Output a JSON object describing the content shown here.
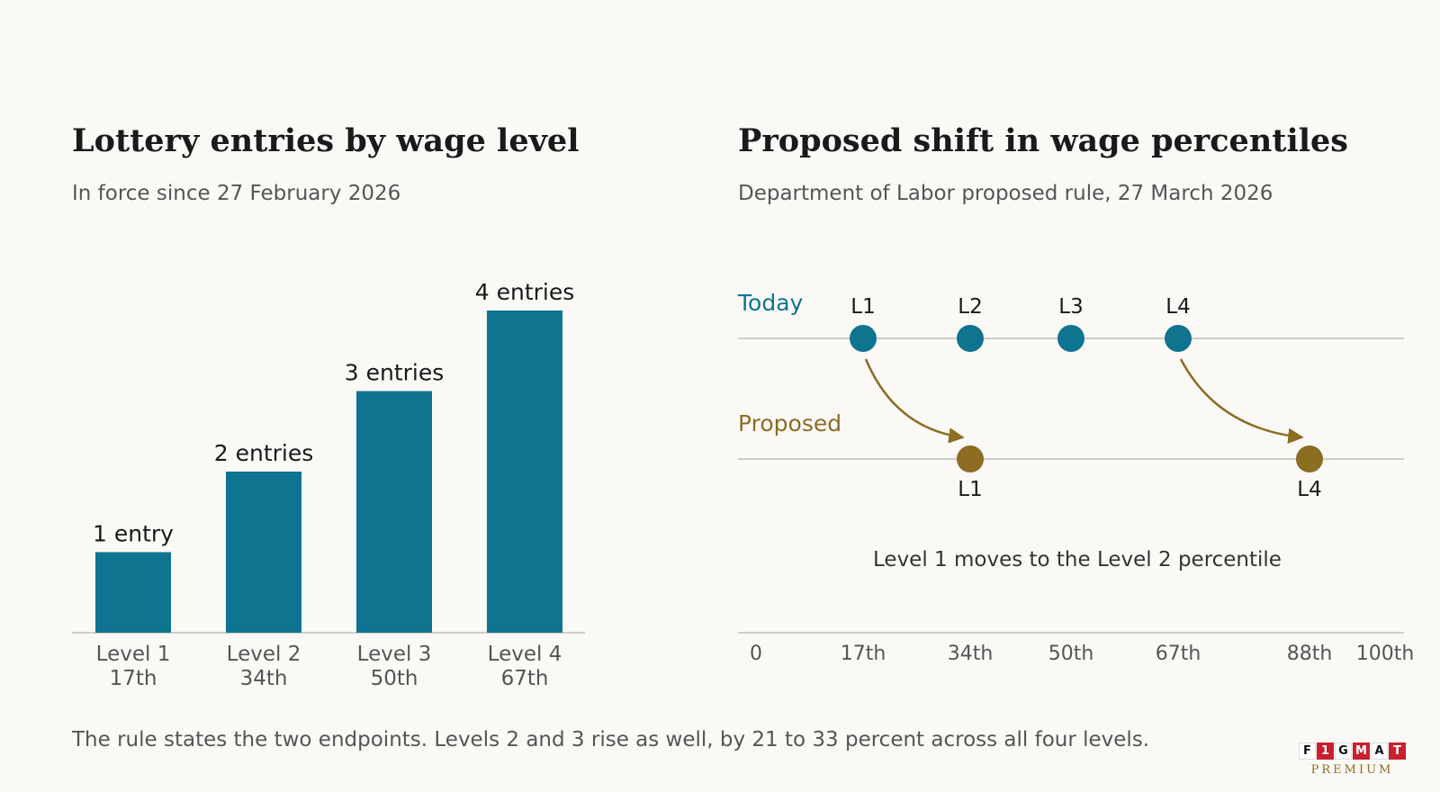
{
  "left": {
    "title": "Lottery entries by wage level",
    "subtitle": "In force since 27 February 2026"
  },
  "right": {
    "title": "Proposed shift in wage percentiles",
    "subtitle": "Department of Labor proposed rule, 27 March 2026",
    "row_today_label": "Today",
    "row_proposed_label": "Proposed",
    "annotation": "Level 1 moves to the Level 2 percentile"
  },
  "footnote": "The rule states the two endpoints. Levels 2 and 3 rise as well, by 21 to 33 percent across all four levels.",
  "logo": {
    "letters": [
      "F",
      "1",
      "G",
      "M",
      "A",
      "T"
    ],
    "tagline": "PREMIUM"
  },
  "colors": {
    "today": "#0e7490",
    "proposed": "#8c6d22",
    "axis": "#cfcdc6",
    "logo_red": "#c8202f"
  },
  "chart_data": [
    {
      "type": "bar",
      "categories": [
        "Level 1",
        "Level 2",
        "Level 3",
        "Level 4"
      ],
      "category_sublabels": [
        "17th",
        "34th",
        "50th",
        "67th"
      ],
      "values": [
        1,
        2,
        3,
        4
      ],
      "data_labels": [
        "1 entry",
        "2 entries",
        "3 entries",
        "4 entries"
      ],
      "ylim": [
        0,
        4
      ],
      "grid": false
    },
    {
      "type": "scatter",
      "xlim": [
        0,
        100
      ],
      "x_ticks": [
        0,
        17,
        34,
        50,
        67,
        88,
        100
      ],
      "x_tick_labels": [
        "0",
        "17th",
        "34th",
        "50th",
        "67th",
        "88th",
        "100th"
      ],
      "series": [
        {
          "name": "Today",
          "points": [
            {
              "x": 17,
              "label": "L1"
            },
            {
              "x": 34,
              "label": "L2"
            },
            {
              "x": 50,
              "label": "L3"
            },
            {
              "x": 67,
              "label": "L4"
            }
          ]
        },
        {
          "name": "Proposed",
          "points": [
            {
              "x": 34,
              "label": "L1"
            },
            {
              "x": 88,
              "label": "L4"
            }
          ]
        }
      ],
      "arrows": [
        {
          "from": 17,
          "to": 34
        },
        {
          "from": 67,
          "to": 88
        }
      ]
    }
  ]
}
